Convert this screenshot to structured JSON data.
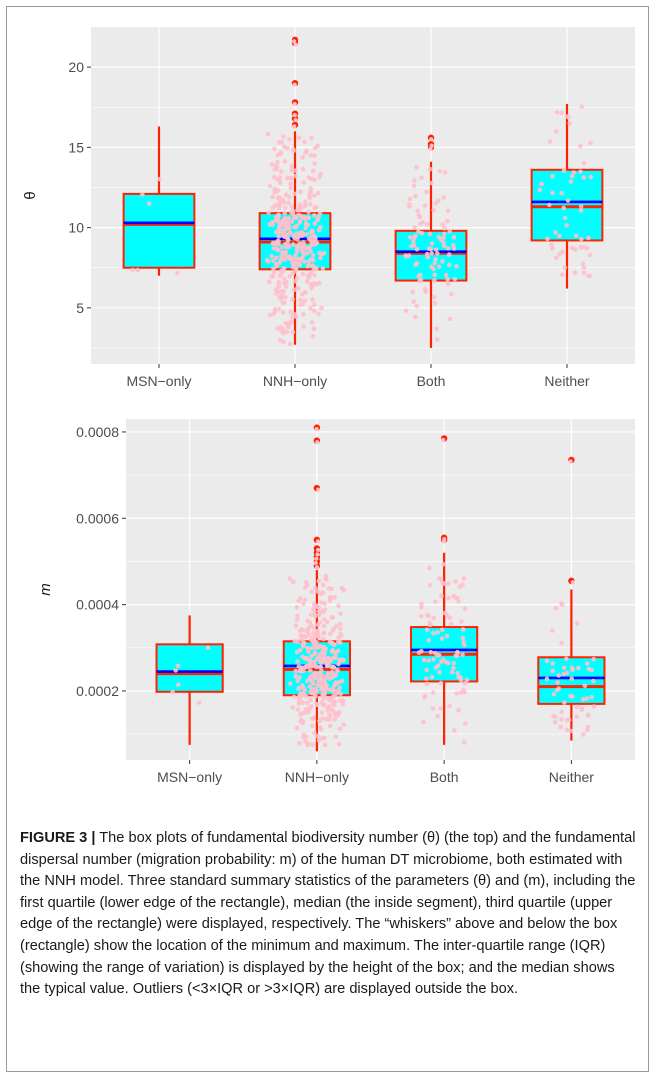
{
  "caption": {
    "label": "FIGURE 3 |",
    "text": "The box plots of fundamental biodiversity number (θ) (the top) and the fundamental dispersal number (migration probability: m) of the human DT microbiome, both estimated with the NNH model. Three standard summary statistics of the parameters (θ) and (m), including the first quartile (lower edge of the rectangle), median (the inside segment), third quartile (upper edge of the rectangle) were displayed, respectively. The “whiskers” above and below the box (rectangle) show the location of the minimum and maximum. The inter-quartile range (IQR) (showing the range of variation) is displayed by the height of the box; and the median shows the typical value. Outliers (<3×IQR or >3×IQR) are displayed outside the box."
  },
  "colors": {
    "panel_bg": "#ebebeb",
    "grid": "#ffffff",
    "box_fill": "#00ffff",
    "box_border": "#ff2200",
    "median": "#ff2200",
    "mean": "#0000ff",
    "jitter": "#ffc0cb",
    "outlier": "#ff2200"
  },
  "chart_data": [
    {
      "type": "box",
      "title": "",
      "xlabel": "",
      "ylabel": "θ",
      "categories": [
        "MSN−only",
        "NNH−only",
        "Both",
        "Neither"
      ],
      "ylim": [
        1.5,
        22.5
      ],
      "yticks": [
        5,
        10,
        15,
        20
      ],
      "ytick_labels": [
        "5",
        "10",
        "15",
        "20"
      ],
      "grid": true,
      "boxes": [
        {
          "min": 7.0,
          "q1": 7.5,
          "median": 10.2,
          "mean": 10.3,
          "q3": 12.1,
          "max": 16.3,
          "n": 6,
          "outliers": []
        },
        {
          "min": 2.7,
          "q1": 7.4,
          "median": 9.1,
          "mean": 9.3,
          "q3": 10.9,
          "max": 16.0,
          "n": 380,
          "outliers": [
            16.4,
            16.8,
            17.1,
            17.8,
            19.0,
            21.5,
            21.7
          ]
        },
        {
          "min": 2.5,
          "q1": 6.7,
          "median": 8.4,
          "mean": 8.5,
          "q3": 9.8,
          "max": 14.1,
          "n": 95,
          "outliers": [
            15.0,
            15.2,
            15.6
          ]
        },
        {
          "min": 6.2,
          "q1": 9.2,
          "median": 11.3,
          "mean": 11.6,
          "q3": 13.6,
          "max": 17.7,
          "n": 55,
          "outliers": []
        }
      ]
    },
    {
      "type": "box",
      "title": "",
      "xlabel": "",
      "ylabel": "m",
      "categories": [
        "MSN−only",
        "NNH−only",
        "Both",
        "Neither"
      ],
      "ylim": [
        4e-05,
        0.00083
      ],
      "yticks": [
        0.0002,
        0.0004,
        0.0006,
        0.0008
      ],
      "ytick_labels": [
        "0.0002",
        "0.0004",
        "0.0006",
        "0.0008"
      ],
      "grid": true,
      "boxes": [
        {
          "min": 7.5e-05,
          "q1": 0.000198,
          "median": 0.00024,
          "mean": 0.000245,
          "q3": 0.000308,
          "max": 0.000375,
          "n": 6,
          "outliers": []
        },
        {
          "min": 6e-05,
          "q1": 0.00019,
          "median": 0.00025,
          "mean": 0.000258,
          "q3": 0.000315,
          "max": 0.00048,
          "n": 380,
          "outliers": [
            0.00049,
            0.0005,
            0.00051,
            0.00052,
            0.00053,
            0.00055,
            0.00067,
            0.00078,
            0.00081
          ]
        },
        {
          "min": 7.5e-05,
          "q1": 0.000222,
          "median": 0.000285,
          "mean": 0.000295,
          "q3": 0.000348,
          "max": 0.00052,
          "n": 95,
          "outliers": [
            0.00055,
            0.000555,
            0.000785
          ]
        },
        {
          "min": 8.5e-05,
          "q1": 0.00017,
          "median": 0.00021,
          "mean": 0.00023,
          "q3": 0.000278,
          "max": 0.000435,
          "n": 55,
          "outliers": [
            0.000455,
            0.000735
          ]
        }
      ]
    }
  ]
}
